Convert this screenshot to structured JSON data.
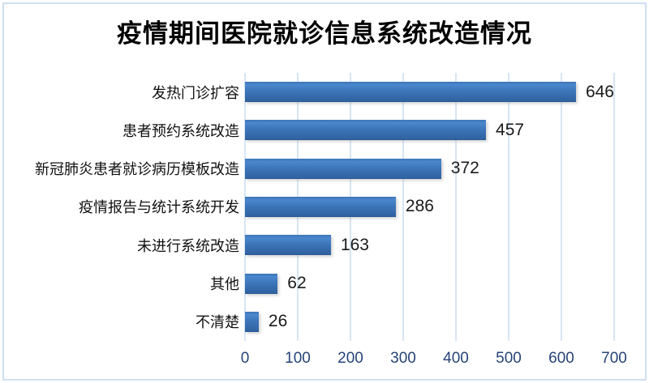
{
  "chart_data": {
    "type": "bar",
    "orientation": "horizontal",
    "title": "疫情期间医院就诊信息系统改造情况",
    "categories": [
      "发热门诊扩容",
      "患者预约系统改造",
      "新冠肺炎患者就诊病历模板改造",
      "疫情报告与统计系统开发",
      "未进行系统改造",
      "其他",
      "不清楚"
    ],
    "values": [
      646,
      457,
      372,
      286,
      163,
      62,
      26
    ],
    "data_labels": [
      "646",
      "457",
      "372",
      "286",
      "163",
      "62",
      "26"
    ],
    "xlabel": "",
    "ylabel": "",
    "xlim": [
      0,
      700
    ],
    "x_ticks": [
      0,
      100,
      200,
      300,
      400,
      500,
      600,
      700
    ],
    "grid": true,
    "legend": "none",
    "colors": {
      "bar_gradient_top": "#4a87cd",
      "bar_gradient_bottom": "#2f619f",
      "gridline": "#d7e5f4",
      "tick_label": "#264478",
      "text": "#111111",
      "title": "#000000",
      "chart_border": "#cfdff2",
      "background": "#ffffff"
    }
  }
}
